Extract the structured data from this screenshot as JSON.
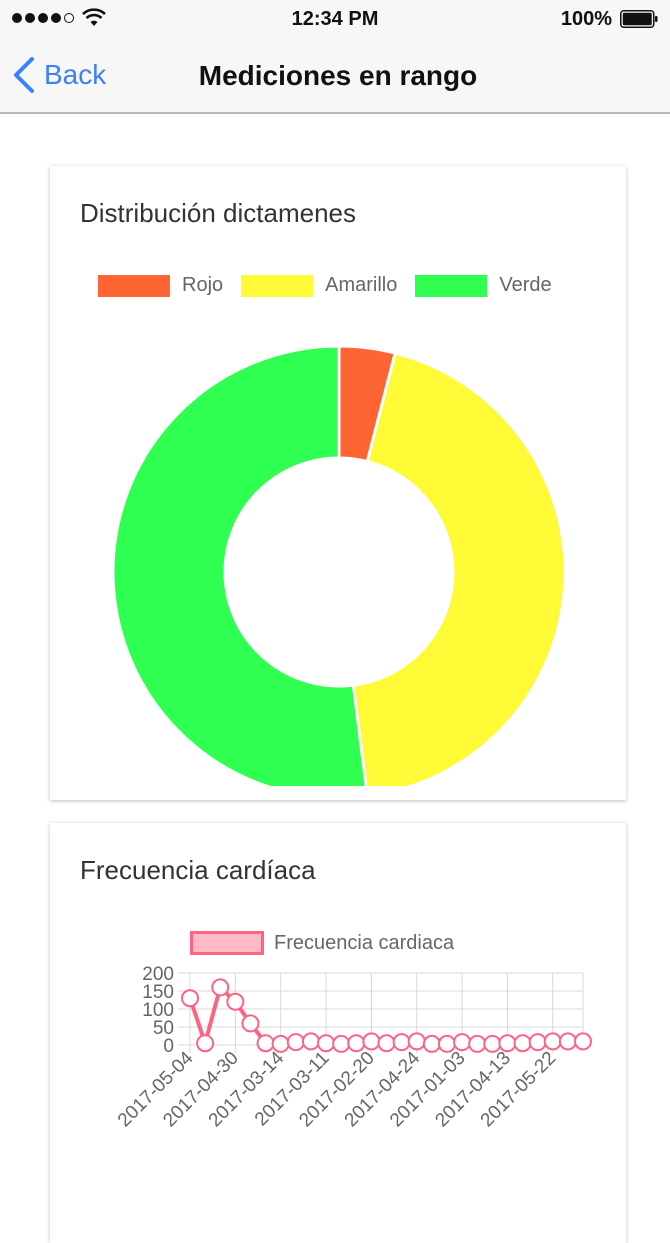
{
  "status_bar": {
    "time": "12:34 PM",
    "battery": "100%"
  },
  "nav": {
    "back_label": "Back",
    "title": "Mediciones en rango"
  },
  "colors": {
    "accent": "#3b82f6",
    "rojo": "#ff6433",
    "amarillo": "#fefa35",
    "verde": "#2fff51",
    "line": "#ff6384",
    "line_fill": "#ffb9c7"
  },
  "card_distribution": {
    "title": "Distribución dictamenes",
    "chart_data": {
      "type": "pie",
      "labels": [
        "Rojo",
        "Amarillo",
        "Verde"
      ],
      "values": [
        4,
        44,
        52
      ]
    }
  },
  "card_heart": {
    "title": "Frecuencia cardíaca",
    "chart_data": {
      "type": "line",
      "series": [
        {
          "name": "Frecuencia cardiaca",
          "values": [
            130,
            5,
            160,
            120,
            60,
            5,
            3,
            8,
            10,
            5,
            3,
            5,
            10,
            5,
            8,
            10,
            3,
            3,
            8,
            3,
            3,
            5,
            5,
            8,
            10,
            10,
            10
          ]
        }
      ],
      "x_tick_labels": [
        "2017-05-04",
        "2017-04-30",
        "2017-03-14",
        "2017-03-11",
        "2017-02-20",
        "2017-04-24",
        "2017-01-03",
        "2017-04-13",
        "2017-05-22"
      ],
      "y_ticks": [
        0,
        50,
        100,
        150,
        200
      ],
      "ylim": [
        0,
        200
      ]
    }
  }
}
